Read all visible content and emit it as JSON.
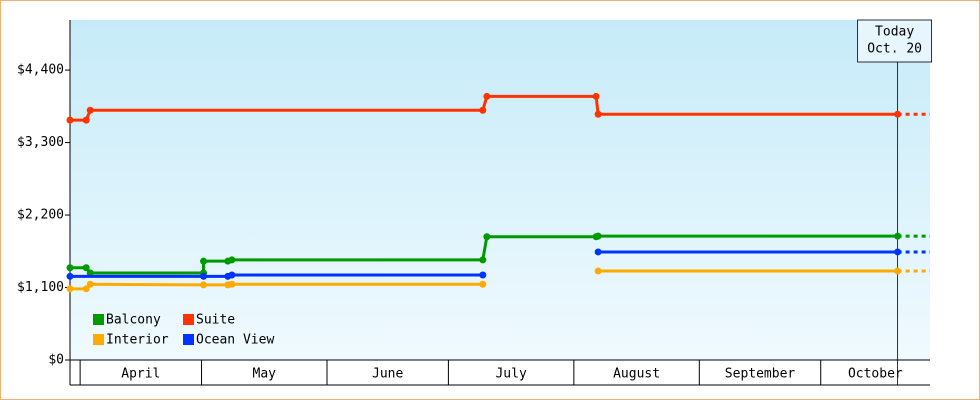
{
  "chart_data": {
    "type": "line",
    "xlim": [
      -2.5,
      210
    ],
    "ylim": [
      0,
      5160
    ],
    "xticks": [
      {
        "value": 0,
        "label": "April"
      },
      {
        "value": 30,
        "label": "May"
      },
      {
        "value": 61,
        "label": "June"
      },
      {
        "value": 91,
        "label": "July"
      },
      {
        "value": 122,
        "label": "August"
      },
      {
        "value": 153,
        "label": "September"
      },
      {
        "value": 183,
        "label": "October"
      }
    ],
    "yticks": [
      {
        "value": 0,
        "label": "$0"
      },
      {
        "value": 1100,
        "label": "$1,100"
      },
      {
        "value": 2200,
        "label": "$2,200"
      },
      {
        "value": 3300,
        "label": "$3,300"
      },
      {
        "value": 4400,
        "label": "$4,400"
      }
    ],
    "today": {
      "x": 202,
      "lines": [
        "Today",
        "Oct. 20"
      ]
    },
    "series": [
      {
        "name": "Balcony",
        "color": "#009900",
        "x": [
          -2.5,
          1.5,
          2.5,
          30.5,
          30.5,
          36.5,
          37.5,
          99.5,
          100.5,
          127.5,
          128,
          202
        ],
        "values": [
          1400,
          1400,
          1320,
          1320,
          1500,
          1500,
          1520,
          1520,
          1870,
          1870,
          1880,
          1880
        ]
      },
      {
        "name": "Suite",
        "color": "#ff3300",
        "x": [
          -2.5,
          1.5,
          2.5,
          99.5,
          100.5,
          127.5,
          128,
          202
        ],
        "values": [
          3640,
          3640,
          3790,
          3790,
          4000,
          4000,
          3730,
          3730
        ]
      },
      {
        "name": "Interior",
        "color": "#ffaa00",
        "x": [
          -2.5,
          1.5,
          2.5,
          30.5,
          36.5,
          37.5,
          99.5,
          null,
          128,
          202
        ],
        "values": [
          1080,
          1080,
          1150,
          1140,
          1140,
          1150,
          1150,
          null,
          1350,
          1350
        ]
      },
      {
        "name": "Ocean View",
        "color": "#0033ff",
        "x": [
          -2.5,
          30.5,
          36.5,
          37.5,
          99.5,
          null,
          128,
          202
        ],
        "values": [
          1270,
          1270,
          1270,
          1290,
          1290,
          null,
          1640,
          1640
        ]
      }
    ]
  }
}
